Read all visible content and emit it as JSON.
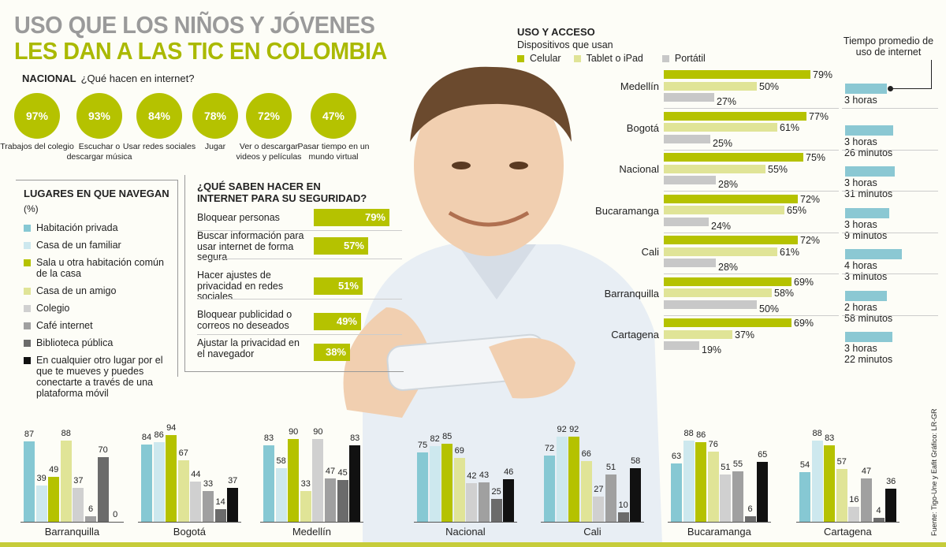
{
  "title_line1": "USO QUE LOS NIÑOS Y JÓVENES",
  "title_line2": "LES DAN A LAS TIC EN COLOMBIA",
  "nacional": {
    "label": "NACIONAL",
    "question": "¿Qué hacen en internet?",
    "items": [
      {
        "pct": "97%",
        "label": "Trabajos del colegio"
      },
      {
        "pct": "93%",
        "label": "Escuchar o descargar música"
      },
      {
        "pct": "84%",
        "label": "Usar redes sociales"
      },
      {
        "pct": "78%",
        "label": "Jugar"
      },
      {
        "pct": "72%",
        "label": "Ver o descargar videos y películas"
      },
      {
        "pct": "47%",
        "label": "Pasar tiempo en un mundo virtual"
      }
    ]
  },
  "lugares": {
    "title": "LUGARES EN QUE NAVEGAN",
    "unit": "(%)",
    "items": [
      {
        "label": "Habitación privada",
        "color": "#86c8d3"
      },
      {
        "label": "Casa de un familiar",
        "color": "#cde8ee"
      },
      {
        "label": "Sala u otra habitación común de la casa",
        "color": "#b5c200"
      },
      {
        "label": "Casa de un amigo",
        "color": "#e0e497"
      },
      {
        "label": "Colegio",
        "color": "#d0d0d0"
      },
      {
        "label": "Café internet",
        "color": "#a0a0a0"
      },
      {
        "label": "Biblioteca pública",
        "color": "#6b6b6b"
      },
      {
        "label": "En cualquier otro lugar por el que te mueves y puedes conectarte a través de una plataforma móvil",
        "color": "#111111"
      }
    ]
  },
  "seguridad": {
    "title": "¿QUÉ SABEN HACER EN INTERNET PARA SU SEGURIDAD?",
    "items": [
      {
        "label": "Bloquear personas",
        "value": 79,
        "text": "79%"
      },
      {
        "label": "Buscar información para usar internet de forma segura",
        "value": 57,
        "text": "57%"
      },
      {
        "label": "Hacer ajustes de privacidad en redes sociales",
        "value": 51,
        "text": "51%"
      },
      {
        "label": "Bloquear publicidad o correos no deseados",
        "value": 49,
        "text": "49%"
      },
      {
        "label": "Ajustar la privacidad en el navegador",
        "value": 38,
        "text": "38%"
      }
    ]
  },
  "acceso": {
    "title": "USO Y ACCESO",
    "subtitle": "Dispositivos que usan",
    "legend": [
      {
        "label": "Celular",
        "color": "#b5c200"
      },
      {
        "label": "Tablet o iPad",
        "color": "#e0e497"
      },
      {
        "label": "Portátil",
        "color": "#c8c8c8"
      }
    ],
    "tiempo_title": "Tiempo promedio de uso de internet"
  },
  "chart_data": [
    {
      "type": "bar",
      "title": "Dispositivos que usan",
      "categories": [
        "Medellín",
        "Bogotá",
        "Nacional",
        "Bucaramanga",
        "Cali",
        "Barranquilla",
        "Cartagena"
      ],
      "series": [
        {
          "name": "Celular",
          "values": [
            79,
            77,
            75,
            72,
            72,
            69,
            69
          ]
        },
        {
          "name": "Tablet o iPad",
          "values": [
            50,
            61,
            55,
            65,
            61,
            58,
            37
          ]
        },
        {
          "name": "Portátil",
          "values": [
            27,
            25,
            28,
            24,
            28,
            50,
            19
          ]
        }
      ],
      "tiempo": [
        {
          "minutes": 180,
          "line1": "3 horas",
          "line2": ""
        },
        {
          "minutes": 206,
          "line1": "3 horas",
          "line2": "26 minutos"
        },
        {
          "minutes": 211,
          "line1": "3 horas",
          "line2": "31 minutos"
        },
        {
          "minutes": 189,
          "line1": "3 horas",
          "line2": "9 minutos"
        },
        {
          "minutes": 243,
          "line1": "4 horas",
          "line2": "3 minutos"
        },
        {
          "minutes": 178,
          "line1": "2 horas",
          "line2": "58 minutos"
        },
        {
          "minutes": 202,
          "line1": "3 horas",
          "line2": "22 minutos"
        }
      ]
    },
    {
      "type": "bar",
      "title": "Lugares en que navegan (%)",
      "categories": [
        "Barranquilla",
        "Bogotá",
        "Medellín",
        "Nacional",
        "Cali",
        "Bucaramanga",
        "Cartagena"
      ],
      "series": [
        {
          "name": "Habitación privada",
          "values": [
            87,
            84,
            83,
            75,
            72,
            63,
            54
          ]
        },
        {
          "name": "Casa de un familiar",
          "values": [
            39,
            86,
            58,
            82,
            92,
            88,
            88
          ]
        },
        {
          "name": "Sala u otra habitación común de la casa",
          "values": [
            49,
            94,
            90,
            85,
            92,
            86,
            83
          ]
        },
        {
          "name": "Casa de un amigo",
          "values": [
            88,
            67,
            33,
            69,
            66,
            76,
            57
          ]
        },
        {
          "name": "Colegio",
          "values": [
            37,
            44,
            90,
            42,
            27,
            51,
            16
          ]
        },
        {
          "name": "Café internet",
          "values": [
            6,
            33,
            47,
            43,
            51,
            55,
            47
          ]
        },
        {
          "name": "Biblioteca pública",
          "values": [
            70,
            14,
            45,
            25,
            10,
            6,
            4
          ]
        },
        {
          "name": "En cualquier otro lugar por el que te mueves y puedes conectarte a través de una plataforma móvil",
          "values": [
            0,
            37,
            83,
            46,
            58,
            65,
            36
          ]
        }
      ]
    }
  ],
  "source": "Fuente: Tigo-Une y Eafit   Gráfico: LR-GR"
}
